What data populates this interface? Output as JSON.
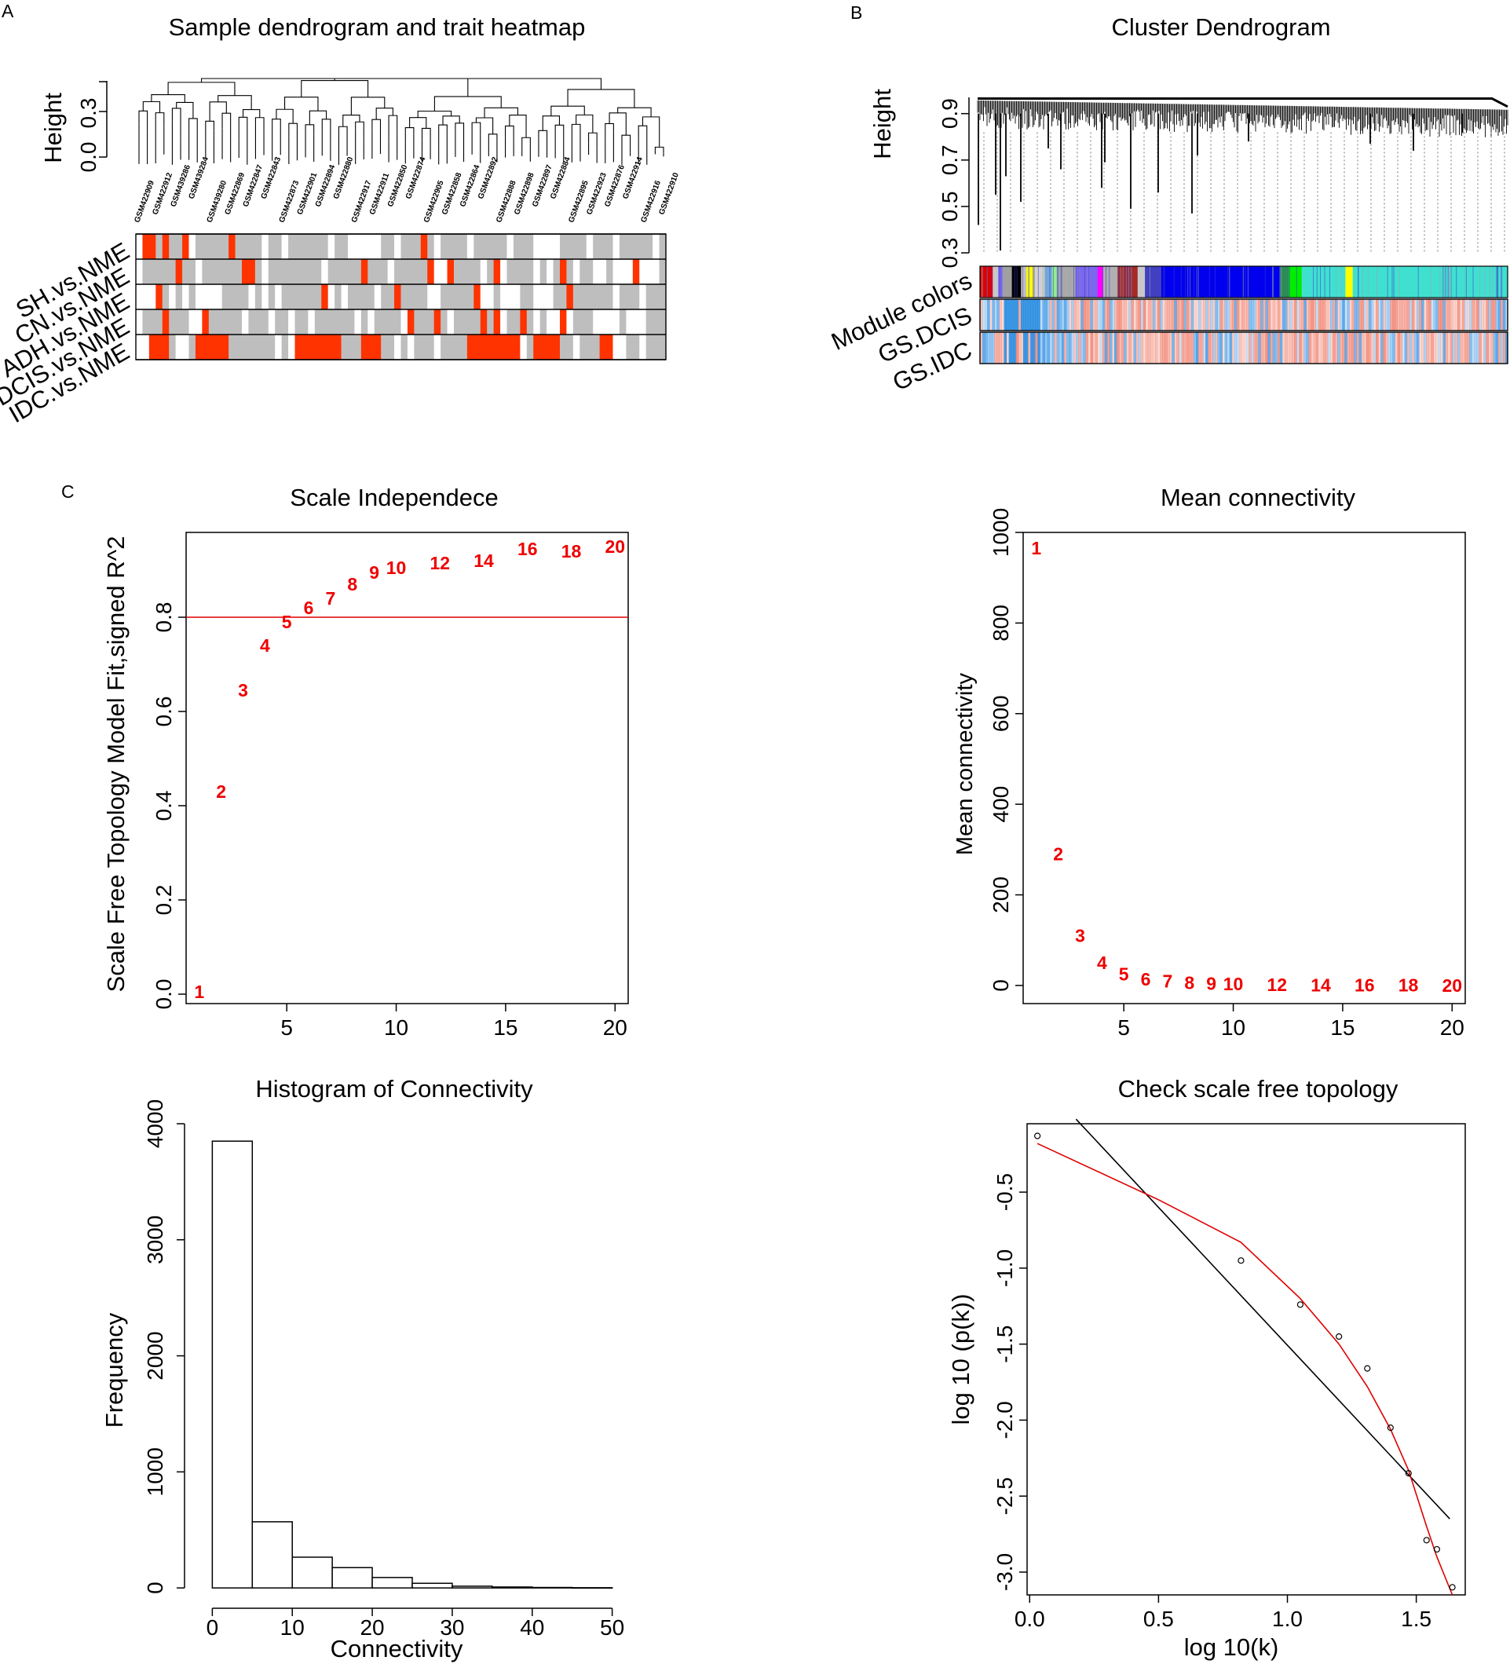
{
  "panel_labels": {
    "a": "A",
    "b": "B",
    "c": "C"
  },
  "chart_data": [
    {
      "id": "sample-dendrogram",
      "type": "dendrogram+heatmap",
      "title": "Sample dendrogram and trait heatmap",
      "ylabel": "Height",
      "yticks": [
        "0.0",
        "0.3"
      ],
      "sample_labels": [
        "GSM422909",
        "GSM422912",
        "GSM439286",
        "GSM439284",
        "GSM439280",
        "GSM422869",
        "GSM422847",
        "GSM422843",
        "GSM422873",
        "GSM422901",
        "GSM422894",
        "GSM422880",
        "GSM422917",
        "GSM422911",
        "GSM422850",
        "GSM422874",
        "GSM422905",
        "GSM422858",
        "GSM422864",
        "GSM422892",
        "GSM422888",
        "GSM422898",
        "GSM422897",
        "GSM422884",
        "GSM422895",
        "GSM422923",
        "GSM422876",
        "GSM422914",
        "GSM422916",
        "GSM422910"
      ],
      "traits": [
        "SH.vs.NME",
        "CN.vs.NME",
        "ADH.vs.NME",
        "DCIS.vs.NME",
        "IDC.vs.NME"
      ],
      "colors": {
        "case": "#ff3300",
        "control": "#bebebe",
        "na": "#ffffff"
      }
    },
    {
      "id": "cluster-dendrogram",
      "type": "dendrogram+heatmap",
      "title": "Cluster Dendrogram",
      "ylabel": "Height",
      "yticks": [
        "0.3",
        "0.5",
        "0.7",
        "0.9"
      ],
      "ylim": [
        0.3,
        0.97
      ],
      "rows": [
        "Module colors",
        "GS.DCIS",
        "GS.IDC"
      ],
      "modules": [
        {
          "color": "#e00000",
          "w": 14
        },
        {
          "color": "#c8c8c8",
          "w": 6
        },
        {
          "color": "#7b68ee",
          "w": 5
        },
        {
          "color": "#a0a0a0",
          "w": 10
        },
        {
          "color": "#000000",
          "w": 10
        },
        {
          "color": "#c0c0c0",
          "w": 6
        },
        {
          "color": "#ffff00",
          "w": 8
        },
        {
          "color": "#d0d0d0",
          "w": 12
        },
        {
          "color": "#6fa8dc",
          "w": 8
        },
        {
          "color": "#90ee90",
          "w": 6
        },
        {
          "color": "#a9a9a9",
          "w": 20
        },
        {
          "color": "#7b68ee",
          "w": 24
        },
        {
          "color": "#ff00ff",
          "w": 6
        },
        {
          "color": "#b0b0b0",
          "w": 16
        },
        {
          "color": "#a52a2a",
          "w": 22
        },
        {
          "color": "#c8c8c8",
          "w": 8
        },
        {
          "color": "#4040c0",
          "w": 18
        },
        {
          "color": "#0000ee",
          "w": 130
        },
        {
          "color": "#2e8b57",
          "w": 10
        },
        {
          "color": "#00ee00",
          "w": 14
        },
        {
          "color": "#40e0d0",
          "w": 48
        },
        {
          "color": "#ffff00",
          "w": 8
        },
        {
          "color": "#40e0d0",
          "w": 170
        }
      ]
    },
    {
      "id": "scale-independence",
      "type": "scatter",
      "title": "Scale Independece",
      "xlabel": "",
      "ylabel": "Scale Free Topology Model Fit,signed R^2",
      "xlim": [
        0.4,
        20.6
      ],
      "ylim": [
        -0.02,
        0.98
      ],
      "xticks": [
        5,
        10,
        15,
        20
      ],
      "yticks": [
        "0.0",
        "0.2",
        "0.4",
        "0.6",
        "0.8"
      ],
      "hline": 0.8,
      "points": [
        {
          "label": "1",
          "x": 1,
          "y": 0.005
        },
        {
          "label": "2",
          "x": 2,
          "y": 0.43
        },
        {
          "label": "3",
          "x": 3,
          "y": 0.645
        },
        {
          "label": "4",
          "x": 4,
          "y": 0.74
        },
        {
          "label": "5",
          "x": 5,
          "y": 0.79
        },
        {
          "label": "6",
          "x": 6,
          "y": 0.82
        },
        {
          "label": "7",
          "x": 7,
          "y": 0.84
        },
        {
          "label": "8",
          "x": 8,
          "y": 0.87
        },
        {
          "label": "9",
          "x": 9,
          "y": 0.895
        },
        {
          "label": "10",
          "x": 10,
          "y": 0.905
        },
        {
          "label": "12",
          "x": 12,
          "y": 0.915
        },
        {
          "label": "14",
          "x": 14,
          "y": 0.92
        },
        {
          "label": "16",
          "x": 16,
          "y": 0.945
        },
        {
          "label": "18",
          "x": 18,
          "y": 0.94
        },
        {
          "label": "20",
          "x": 20,
          "y": 0.95
        }
      ]
    },
    {
      "id": "mean-connectivity",
      "type": "scatter",
      "title": "Mean connectivity",
      "xlabel": "",
      "ylabel": "Mean connectivity",
      "xlim": [
        0.4,
        20.6
      ],
      "ylim": [
        -40,
        1000
      ],
      "xticks": [
        5,
        10,
        15,
        20
      ],
      "yticks": [
        "0",
        "200",
        "400",
        "600",
        "800",
        "1000"
      ],
      "points": [
        {
          "label": "1",
          "x": 1,
          "y": 965
        },
        {
          "label": "2",
          "x": 2,
          "y": 290
        },
        {
          "label": "3",
          "x": 3,
          "y": 110
        },
        {
          "label": "4",
          "x": 4,
          "y": 50
        },
        {
          "label": "5",
          "x": 5,
          "y": 25
        },
        {
          "label": "6",
          "x": 6,
          "y": 14
        },
        {
          "label": "7",
          "x": 7,
          "y": 9
        },
        {
          "label": "8",
          "x": 8,
          "y": 6
        },
        {
          "label": "9",
          "x": 9,
          "y": 4
        },
        {
          "label": "10",
          "x": 10,
          "y": 3
        },
        {
          "label": "12",
          "x": 12,
          "y": 2
        },
        {
          "label": "14",
          "x": 14,
          "y": 1
        },
        {
          "label": "16",
          "x": 16,
          "y": 1
        },
        {
          "label": "18",
          "x": 18,
          "y": 1
        },
        {
          "label": "20",
          "x": 20,
          "y": 0
        }
      ]
    },
    {
      "id": "histogram-connectivity",
      "type": "bar",
      "title": "Histogram of Connectivity",
      "xlabel": "Connectivity",
      "ylabel": "Frequency",
      "xlim": [
        -2,
        52
      ],
      "ylim": [
        -60,
        4000
      ],
      "xticks": [
        0,
        10,
        20,
        30,
        40,
        50
      ],
      "yticks": [
        "0",
        "1000",
        "2000",
        "3000",
        "4000"
      ],
      "bins": [
        {
          "from": 0,
          "to": 5,
          "count": 3850
        },
        {
          "from": 5,
          "to": 10,
          "count": 570
        },
        {
          "from": 10,
          "to": 15,
          "count": 265
        },
        {
          "from": 15,
          "to": 20,
          "count": 175
        },
        {
          "from": 20,
          "to": 25,
          "count": 90
        },
        {
          "from": 25,
          "to": 30,
          "count": 40
        },
        {
          "from": 30,
          "to": 35,
          "count": 15
        },
        {
          "from": 35,
          "to": 40,
          "count": 8
        },
        {
          "from": 40,
          "to": 45,
          "count": 4
        },
        {
          "from": 45,
          "to": 50,
          "count": 2
        }
      ]
    },
    {
      "id": "scale-free-check",
      "type": "scatter",
      "title": "Check scale free topology",
      "xlabel": "log 10(k)",
      "ylabel": "log 10 (p(k))",
      "xlim": [
        -0.01,
        1.69
      ],
      "ylim": [
        -3.15,
        -0.05
      ],
      "xticks": [
        "0.0",
        "0.5",
        "1.0",
        "1.5"
      ],
      "xtick_values": [
        0.0,
        0.5,
        1.0,
        1.5
      ],
      "yticks": [
        "-3.0",
        "-2.5",
        "-2.0",
        "-1.5",
        "-1.0",
        "-0.5"
      ],
      "ytick_values": [
        -3.0,
        -2.5,
        -2.0,
        -1.5,
        -1.0,
        -0.5
      ],
      "points": [
        {
          "x": 0.03,
          "y": -0.13
        },
        {
          "x": 0.82,
          "y": -0.95
        },
        {
          "x": 1.05,
          "y": -1.24
        },
        {
          "x": 1.2,
          "y": -1.45
        },
        {
          "x": 1.31,
          "y": -1.66
        },
        {
          "x": 1.4,
          "y": -2.05
        },
        {
          "x": 1.47,
          "y": -2.35
        },
        {
          "x": 1.54,
          "y": -2.79
        },
        {
          "x": 1.58,
          "y": -2.85
        },
        {
          "x": 1.64,
          "y": -3.1
        }
      ],
      "fit_line": {
        "x1": 0.18,
        "y1": -0.02,
        "x2": 1.63,
        "y2": -2.65
      },
      "trend_line": [
        {
          "x": 0.03,
          "y": -0.18
        },
        {
          "x": 0.5,
          "y": -0.55
        },
        {
          "x": 0.82,
          "y": -0.83
        },
        {
          "x": 1.05,
          "y": -1.2
        },
        {
          "x": 1.2,
          "y": -1.5
        },
        {
          "x": 1.31,
          "y": -1.78
        },
        {
          "x": 1.4,
          "y": -2.06
        },
        {
          "x": 1.47,
          "y": -2.33
        },
        {
          "x": 1.54,
          "y": -2.7
        },
        {
          "x": 1.58,
          "y": -2.9
        },
        {
          "x": 1.64,
          "y": -3.15
        }
      ]
    }
  ]
}
